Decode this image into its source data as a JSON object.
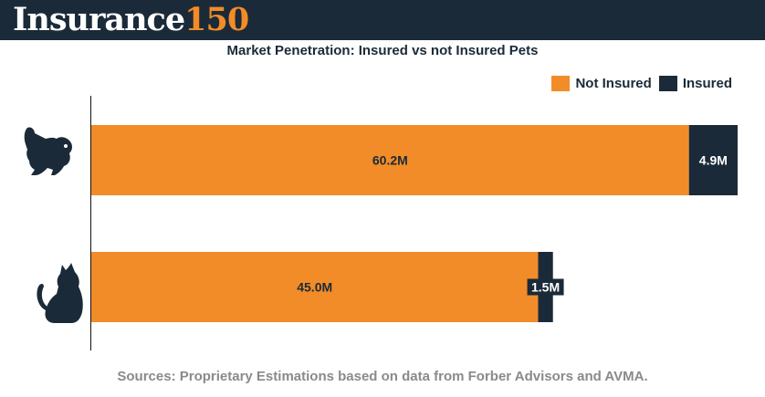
{
  "header": {
    "logo_word": "Insurance",
    "logo_number": "150"
  },
  "colors": {
    "not_insured": "#f28c28",
    "insured": "#1b2a38",
    "header_bg": "#1b2a38"
  },
  "chart_data": {
    "type": "bar",
    "orientation": "horizontal",
    "stacked": true,
    "title": "Market Penetration: Insured vs not Insured Pets",
    "categories": [
      "dog-icon",
      "cat-icon"
    ],
    "series": [
      {
        "name": "Not Insured",
        "values": [
          60.2,
          45.0
        ],
        "labels": [
          "60.2M",
          "45.0M"
        ]
      },
      {
        "name": "Insured",
        "values": [
          4.9,
          1.5
        ],
        "labels": [
          "4.9M",
          "1.5M"
        ]
      }
    ],
    "xlim": [
      0,
      65.1
    ],
    "grid": false,
    "legend_position": "top-right"
  },
  "source": "Sources: Proprietary Estimations based on data from Forber Advisors and AVMA."
}
